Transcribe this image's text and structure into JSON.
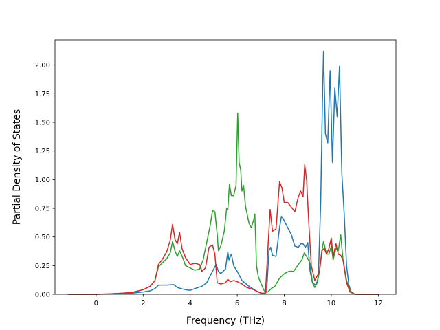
{
  "chart_data": {
    "type": "line",
    "title": "",
    "xlabel": "Frequency (THz)",
    "ylabel": "Partial Density of States",
    "xlim": [
      -1.75,
      12.75
    ],
    "ylim": [
      0,
      2.22
    ],
    "x_ticks": [
      0,
      2,
      4,
      6,
      8,
      10,
      12
    ],
    "y_ticks": [
      0.0,
      0.25,
      0.5,
      0.75,
      1.0,
      1.25,
      1.5,
      1.75,
      2.0
    ],
    "x_tick_labels": [
      "0",
      "2",
      "4",
      "6",
      "8",
      "10",
      "12"
    ],
    "y_tick_labels": [
      "0.00",
      "0.25",
      "0.50",
      "0.75",
      "1.00",
      "1.25",
      "1.50",
      "1.75",
      "2.00"
    ],
    "grid": false,
    "legend": "none",
    "series": [
      {
        "color": "#1f77b4",
        "points": [
          [
            -1.2,
            0
          ],
          [
            0,
            0
          ],
          [
            0.5,
            0.002
          ],
          [
            1,
            0.005
          ],
          [
            1.5,
            0.01
          ],
          [
            2,
            0.02
          ],
          [
            2.3,
            0.03
          ],
          [
            2.5,
            0.05
          ],
          [
            2.65,
            0.08
          ],
          [
            3,
            0.08
          ],
          [
            3.3,
            0.085
          ],
          [
            3.45,
            0.06
          ],
          [
            3.6,
            0.05
          ],
          [
            3.8,
            0.04
          ],
          [
            4,
            0.035
          ],
          [
            4.2,
            0.05
          ],
          [
            4.5,
            0.07
          ],
          [
            4.7,
            0.1
          ],
          [
            4.85,
            0.16
          ],
          [
            5,
            0.22
          ],
          [
            5.1,
            0.26
          ],
          [
            5.2,
            0.2
          ],
          [
            5.3,
            0.18
          ],
          [
            5.5,
            0.22
          ],
          [
            5.6,
            0.37
          ],
          [
            5.65,
            0.3
          ],
          [
            5.75,
            0.35
          ],
          [
            5.85,
            0.25
          ],
          [
            6,
            0.2
          ],
          [
            6.2,
            0.12
          ],
          [
            6.5,
            0.07
          ],
          [
            6.8,
            0.03
          ],
          [
            7.1,
            0.005
          ],
          [
            7.25,
            0.02
          ],
          [
            7.35,
            0.38
          ],
          [
            7.42,
            0.41
          ],
          [
            7.5,
            0.34
          ],
          [
            7.65,
            0.33
          ],
          [
            7.8,
            0.58
          ],
          [
            7.88,
            0.68
          ],
          [
            7.95,
            0.66
          ],
          [
            8.1,
            0.6
          ],
          [
            8.3,
            0.52
          ],
          [
            8.45,
            0.42
          ],
          [
            8.6,
            0.41
          ],
          [
            8.7,
            0.44
          ],
          [
            8.8,
            0.44
          ],
          [
            8.9,
            0.41
          ],
          [
            9.0,
            0.45
          ],
          [
            9.1,
            0.2
          ],
          [
            9.2,
            0.1
          ],
          [
            9.35,
            0.08
          ],
          [
            9.45,
            0.15
          ],
          [
            9.55,
            0.8
          ],
          [
            9.62,
            1.65
          ],
          [
            9.67,
            2.12
          ],
          [
            9.75,
            1.4
          ],
          [
            9.85,
            1.32
          ],
          [
            9.95,
            1.95
          ],
          [
            10.05,
            1.15
          ],
          [
            10.15,
            1.8
          ],
          [
            10.25,
            1.55
          ],
          [
            10.35,
            1.99
          ],
          [
            10.45,
            1.05
          ],
          [
            10.55,
            0.7
          ],
          [
            10.65,
            0.25
          ],
          [
            10.75,
            0.08
          ],
          [
            10.85,
            0.02
          ],
          [
            11,
            0
          ],
          [
            12,
            0
          ]
        ]
      },
      {
        "color": "#2ca02c",
        "points": [
          [
            -1.2,
            0
          ],
          [
            0,
            0
          ],
          [
            0.5,
            0.003
          ],
          [
            1,
            0.008
          ],
          [
            1.5,
            0.015
          ],
          [
            2,
            0.04
          ],
          [
            2.3,
            0.07
          ],
          [
            2.5,
            0.12
          ],
          [
            2.65,
            0.24
          ],
          [
            2.8,
            0.27
          ],
          [
            3,
            0.31
          ],
          [
            3.15,
            0.36
          ],
          [
            3.25,
            0.46
          ],
          [
            3.35,
            0.38
          ],
          [
            3.45,
            0.33
          ],
          [
            3.55,
            0.38
          ],
          [
            3.7,
            0.31
          ],
          [
            3.8,
            0.25
          ],
          [
            4,
            0.23
          ],
          [
            4.2,
            0.21
          ],
          [
            4.4,
            0.22
          ],
          [
            4.55,
            0.3
          ],
          [
            4.7,
            0.45
          ],
          [
            4.85,
            0.6
          ],
          [
            4.95,
            0.73
          ],
          [
            5.05,
            0.72
          ],
          [
            5.15,
            0.52
          ],
          [
            5.2,
            0.38
          ],
          [
            5.3,
            0.42
          ],
          [
            5.45,
            0.55
          ],
          [
            5.55,
            0.75
          ],
          [
            5.6,
            0.74
          ],
          [
            5.67,
            0.96
          ],
          [
            5.75,
            0.86
          ],
          [
            5.85,
            0.86
          ],
          [
            5.95,
            0.95
          ],
          [
            6.02,
            1.58
          ],
          [
            6.08,
            1.15
          ],
          [
            6.15,
            1.08
          ],
          [
            6.2,
            0.9
          ],
          [
            6.27,
            0.95
          ],
          [
            6.35,
            0.77
          ],
          [
            6.5,
            0.62
          ],
          [
            6.6,
            0.58
          ],
          [
            6.7,
            0.65
          ],
          [
            6.75,
            0.7
          ],
          [
            6.82,
            0.25
          ],
          [
            6.9,
            0.15
          ],
          [
            7.0,
            0.1
          ],
          [
            7.15,
            0.03
          ],
          [
            7.3,
            0.02
          ],
          [
            7.45,
            0.05
          ],
          [
            7.6,
            0.07
          ],
          [
            7.8,
            0.14
          ],
          [
            8,
            0.18
          ],
          [
            8.2,
            0.2
          ],
          [
            8.4,
            0.2
          ],
          [
            8.6,
            0.26
          ],
          [
            8.75,
            0.3
          ],
          [
            8.85,
            0.36
          ],
          [
            8.95,
            0.33
          ],
          [
            9.1,
            0.27
          ],
          [
            9.2,
            0.1
          ],
          [
            9.3,
            0.06
          ],
          [
            9.4,
            0.1
          ],
          [
            9.5,
            0.2
          ],
          [
            9.6,
            0.38
          ],
          [
            9.67,
            0.46
          ],
          [
            9.8,
            0.35
          ],
          [
            9.9,
            0.35
          ],
          [
            10.0,
            0.42
          ],
          [
            10.08,
            0.3
          ],
          [
            10.2,
            0.4
          ],
          [
            10.3,
            0.38
          ],
          [
            10.4,
            0.52
          ],
          [
            10.5,
            0.3
          ],
          [
            10.65,
            0.12
          ],
          [
            10.8,
            0.03
          ],
          [
            11,
            0
          ],
          [
            12,
            0
          ]
        ]
      },
      {
        "color": "#d62728",
        "points": [
          [
            -1.2,
            0
          ],
          [
            0,
            0
          ],
          [
            0.5,
            0.003
          ],
          [
            1,
            0.008
          ],
          [
            1.5,
            0.015
          ],
          [
            2,
            0.04
          ],
          [
            2.3,
            0.07
          ],
          [
            2.5,
            0.12
          ],
          [
            2.65,
            0.26
          ],
          [
            2.8,
            0.3
          ],
          [
            3,
            0.37
          ],
          [
            3.15,
            0.47
          ],
          [
            3.25,
            0.61
          ],
          [
            3.35,
            0.48
          ],
          [
            3.45,
            0.44
          ],
          [
            3.55,
            0.54
          ],
          [
            3.65,
            0.4
          ],
          [
            3.8,
            0.32
          ],
          [
            4,
            0.26
          ],
          [
            4.2,
            0.27
          ],
          [
            4.4,
            0.26
          ],
          [
            4.5,
            0.2
          ],
          [
            4.65,
            0.23
          ],
          [
            4.8,
            0.41
          ],
          [
            4.95,
            0.43
          ],
          [
            5.05,
            0.35
          ],
          [
            5.15,
            0.1
          ],
          [
            5.3,
            0.09
          ],
          [
            5.5,
            0.1
          ],
          [
            5.6,
            0.13
          ],
          [
            5.7,
            0.11
          ],
          [
            5.85,
            0.12
          ],
          [
            6.0,
            0.11
          ],
          [
            6.2,
            0.09
          ],
          [
            6.4,
            0.06
          ],
          [
            6.7,
            0.04
          ],
          [
            7.0,
            0.01
          ],
          [
            7.2,
            0.01
          ],
          [
            7.3,
            0.38
          ],
          [
            7.4,
            0.74
          ],
          [
            7.5,
            0.55
          ],
          [
            7.65,
            0.57
          ],
          [
            7.8,
            0.98
          ],
          [
            7.9,
            0.93
          ],
          [
            8.0,
            0.8
          ],
          [
            8.15,
            0.8
          ],
          [
            8.3,
            0.76
          ],
          [
            8.45,
            0.72
          ],
          [
            8.6,
            0.85
          ],
          [
            8.7,
            0.9
          ],
          [
            8.8,
            0.85
          ],
          [
            8.87,
            1.13
          ],
          [
            8.95,
            1.0
          ],
          [
            9.05,
            0.6
          ],
          [
            9.15,
            0.25
          ],
          [
            9.3,
            0.12
          ],
          [
            9.5,
            0.2
          ],
          [
            9.6,
            0.38
          ],
          [
            9.7,
            0.4
          ],
          [
            9.8,
            0.35
          ],
          [
            9.9,
            0.4
          ],
          [
            10.0,
            0.49
          ],
          [
            10.08,
            0.33
          ],
          [
            10.2,
            0.44
          ],
          [
            10.3,
            0.35
          ],
          [
            10.4,
            0.34
          ],
          [
            10.5,
            0.3
          ],
          [
            10.65,
            0.1
          ],
          [
            10.8,
            0.02
          ],
          [
            11,
            0
          ],
          [
            12,
            0
          ]
        ]
      }
    ]
  }
}
